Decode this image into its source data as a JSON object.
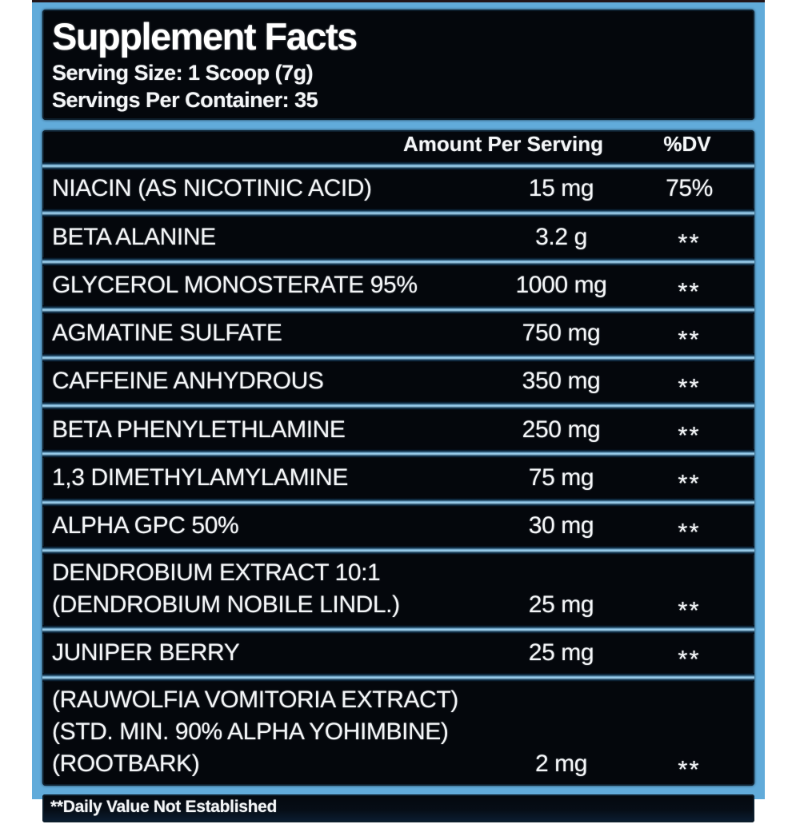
{
  "label": {
    "title": "Supplement Facts",
    "serving_size": "Serving Size: 1 Scoop (7g)",
    "servings_per_container": "Servings Per Container: 35",
    "columns": {
      "amount": "Amount Per Serving",
      "dv": "%DV"
    },
    "rows": [
      {
        "name_lines": [
          "NIACIN (AS NICOTINIC ACID)"
        ],
        "amount": "15 mg",
        "dv": "75%"
      },
      {
        "name_lines": [
          "BETA ALANINE"
        ],
        "amount": "3.2 g",
        "dv": "**"
      },
      {
        "name_lines": [
          "GLYCEROL MONOSTERATE 95%"
        ],
        "amount": "1000 mg",
        "dv": "**"
      },
      {
        "name_lines": [
          "AGMATINE SULFATE"
        ],
        "amount": "750 mg",
        "dv": "**"
      },
      {
        "name_lines": [
          "CAFFEINE ANHYDROUS"
        ],
        "amount": "350 mg",
        "dv": "**"
      },
      {
        "name_lines": [
          "BETA PHENYLETHLAMINE"
        ],
        "amount": "250 mg",
        "dv": "**"
      },
      {
        "name_lines": [
          "1,3 DIMETHYLAMYLAMINE"
        ],
        "amount": "75 mg",
        "dv": "**"
      },
      {
        "name_lines": [
          "ALPHA GPC 50%"
        ],
        "amount": "30 mg",
        "dv": "**"
      },
      {
        "name_lines": [
          "DENDROBIUM EXTRACT 10:1",
          "(DENDROBIUM NOBILE LINDL.)"
        ],
        "amount": "25 mg",
        "dv": "**"
      },
      {
        "name_lines": [
          "JUNIPER BERRY"
        ],
        "amount": "25 mg",
        "dv": "**"
      },
      {
        "name_lines": [
          "(RAUWOLFIA VOMITORIA EXTRACT)",
          "(STD. MIN. 90% ALPHA YOHIMBINE)",
          "(ROOTBARK)"
        ],
        "amount": "2 mg",
        "dv": "**"
      }
    ],
    "footnote": "**Daily Value Not Established",
    "colors": {
      "frame_blue": "#61abda",
      "panel_black": "#04070c",
      "glow_blue": "#9fd2ef",
      "text_white": "#f3f5f7"
    }
  }
}
